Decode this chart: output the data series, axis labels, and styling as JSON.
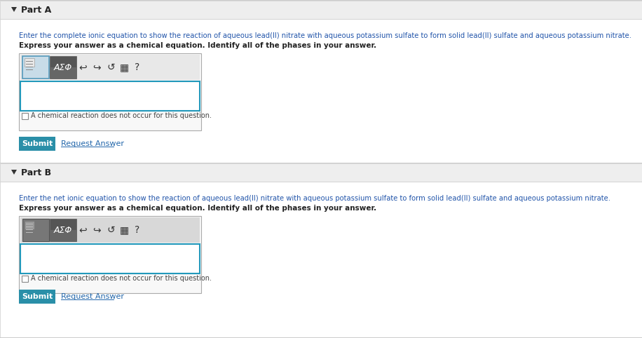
{
  "bg_color": "#f5f5f5",
  "white": "#ffffff",
  "border_color": "#cccccc",
  "part_header_bg": "#eeeeee",
  "part_a_label": "Part A",
  "part_b_label": "Part B",
  "part_a_instruction": "Enter the complete ionic equation to show the reaction of aqueous lead(II) nitrate with aqueous potassium sulfate to form solid lead(II) sulfate and aqueous potassium nitrate.",
  "part_b_instruction": "Enter the net ionic equation to show the reaction of aqueous lead(II) nitrate with aqueous potassium sulfate to form solid lead(II) sulfate and aqueous potassium nitrate.",
  "express_answer": "Express your answer as a chemical equation. Identify all of the phases in your answer.",
  "checkbox_text": "A chemical reaction does not occur for this question.",
  "submit_text": "Submit",
  "request_answer_text": "Request Answer",
  "submit_bg": "#2a8fa8",
  "submit_text_color": "#ffffff",
  "request_answer_color": "#2266aa",
  "input_border": "#2299bb",
  "instruction_color": "#2255aa",
  "dark_text": "#222222",
  "toolbar_light_bg": "#c8dce8",
  "toolbar_light_border": "#5599bb",
  "toolbar_dark_bg": "#555555",
  "toolbar_dark_bg2": "#666666",
  "toolbar_row_bg": "#e8e8e8",
  "toolbar_row_border": "#bbbbbb",
  "widget_border": "#aaaaaa",
  "widget_bg": "#f8f8f8",
  "checkbox_border": "#888888",
  "icon_color": "#333333",
  "part_header_text": "#222222",
  "separator_color": "#cccccc",
  "top_line_color": "#cccccc"
}
